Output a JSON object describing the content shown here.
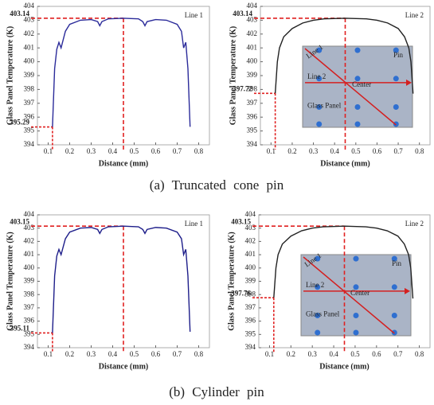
{
  "chart_data": [
    {
      "type": "line",
      "xlabel": "Distance (mm)",
      "ylabel": "Glass Panel Temperature (K)",
      "xlim": [
        0.05,
        0.85
      ],
      "xticks": [
        0.1,
        0.2,
        0.3,
        0.4,
        0.5,
        0.6,
        0.7,
        0.8
      ],
      "ylim": [
        394,
        404
      ],
      "yticks": [
        394,
        395,
        396,
        397,
        398,
        399,
        400,
        401,
        402,
        403,
        404
      ],
      "x": [
        0.12,
        0.13,
        0.14,
        0.15,
        0.16,
        0.18,
        0.2,
        0.25,
        0.3,
        0.33,
        0.34,
        0.35,
        0.38,
        0.45,
        0.52,
        0.54,
        0.55,
        0.56,
        0.6,
        0.65,
        0.7,
        0.72,
        0.73,
        0.74,
        0.75,
        0.76
      ],
      "series": [
        {
          "name": "Line 1",
          "color": "#2b2b9a",
          "values": [
            395.29,
            399.5,
            400.9,
            401.4,
            401.0,
            402.2,
            402.7,
            403.0,
            403.05,
            402.9,
            402.6,
            402.9,
            403.1,
            403.14,
            403.1,
            402.9,
            402.6,
            402.9,
            403.05,
            403.0,
            402.7,
            402.2,
            401.0,
            401.4,
            399.5,
            395.3
          ]
        }
      ],
      "reference_lines": [
        {
          "x": 0.45,
          "y": 403.14
        },
        {
          "x": 0.12,
          "y": 395.29
        }
      ]
    },
    {
      "type": "line",
      "xlabel": "Distance (mm)",
      "ylabel": "Glass Panel Temperature (K)",
      "xlim": [
        0.05,
        0.85
      ],
      "xticks": [
        0.1,
        0.2,
        0.3,
        0.4,
        0.5,
        0.6,
        0.7,
        0.8
      ],
      "ylim": [
        394,
        404
      ],
      "yticks": [
        394,
        395,
        396,
        397,
        398,
        399,
        400,
        401,
        402,
        403,
        404
      ],
      "x": [
        0.12,
        0.13,
        0.14,
        0.16,
        0.2,
        0.25,
        0.3,
        0.35,
        0.45,
        0.55,
        0.6,
        0.65,
        0.7,
        0.73,
        0.75,
        0.76,
        0.77
      ],
      "series": [
        {
          "name": "Line 2",
          "color": "#222222",
          "values": [
            397.72,
            400.0,
            401.0,
            401.8,
            402.4,
            402.8,
            403.0,
            403.1,
            403.14,
            403.1,
            403.0,
            402.8,
            402.4,
            401.8,
            401.0,
            400.0,
            397.7
          ]
        }
      ],
      "reference_lines": [
        {
          "x": 0.45,
          "y": 403.14
        },
        {
          "x": 0.12,
          "y": 397.72
        }
      ],
      "inset_labels": [
        "Line 1",
        "Line 2",
        "Center",
        "Pin",
        "Glass Panel"
      ]
    },
    {
      "type": "line",
      "xlabel": "Distance (mm)",
      "ylabel": "Glass Panel Temperature (K)",
      "xlim": [
        0.05,
        0.85
      ],
      "xticks": [
        0.1,
        0.2,
        0.3,
        0.4,
        0.5,
        0.6,
        0.7,
        0.8
      ],
      "ylim": [
        394,
        404
      ],
      "yticks": [
        394,
        395,
        396,
        397,
        398,
        399,
        400,
        401,
        402,
        403,
        404
      ],
      "x": [
        0.12,
        0.13,
        0.14,
        0.15,
        0.16,
        0.18,
        0.2,
        0.25,
        0.3,
        0.33,
        0.34,
        0.35,
        0.38,
        0.45,
        0.52,
        0.54,
        0.55,
        0.56,
        0.6,
        0.65,
        0.7,
        0.72,
        0.73,
        0.74,
        0.75,
        0.76
      ],
      "series": [
        {
          "name": "Line 1",
          "color": "#1e1e8a",
          "values": [
            395.11,
            399.4,
            400.9,
            401.4,
            401.0,
            402.2,
            402.7,
            403.0,
            403.05,
            402.9,
            402.6,
            402.9,
            403.1,
            403.15,
            403.1,
            402.9,
            402.6,
            402.9,
            403.05,
            403.0,
            402.7,
            402.2,
            401.0,
            401.4,
            399.4,
            395.2
          ]
        }
      ],
      "reference_lines": [
        {
          "x": 0.45,
          "y": 403.15
        },
        {
          "x": 0.12,
          "y": 395.11
        }
      ]
    },
    {
      "type": "line",
      "xlabel": "Distance (mm)",
      "ylabel": "Glass Panel Temperature (K)",
      "xlim": [
        0.05,
        0.85
      ],
      "xticks": [
        0.1,
        0.2,
        0.3,
        0.4,
        0.5,
        0.6,
        0.7,
        0.8
      ],
      "ylim": [
        394,
        404
      ],
      "yticks": [
        394,
        395,
        396,
        397,
        398,
        399,
        400,
        401,
        402,
        403,
        404
      ],
      "x": [
        0.12,
        0.13,
        0.14,
        0.16,
        0.2,
        0.25,
        0.3,
        0.35,
        0.45,
        0.55,
        0.6,
        0.65,
        0.7,
        0.73,
        0.75,
        0.76,
        0.77
      ],
      "series": [
        {
          "name": "Line 2",
          "color": "#222222",
          "values": [
            397.76,
            400.0,
            401.0,
            401.8,
            402.4,
            402.8,
            403.0,
            403.1,
            403.15,
            403.1,
            403.0,
            402.8,
            402.4,
            401.8,
            401.0,
            400.0,
            397.7
          ]
        }
      ],
      "reference_lines": [
        {
          "x": 0.45,
          "y": 403.15
        },
        {
          "x": 0.12,
          "y": 397.76
        }
      ],
      "inset_labels": [
        "Line 1",
        "Line 2",
        "Center",
        "Pin",
        "Glass Panel"
      ]
    }
  ],
  "captions": [
    "(a) Truncated cone pin",
    "(b) Cylinder pin"
  ]
}
